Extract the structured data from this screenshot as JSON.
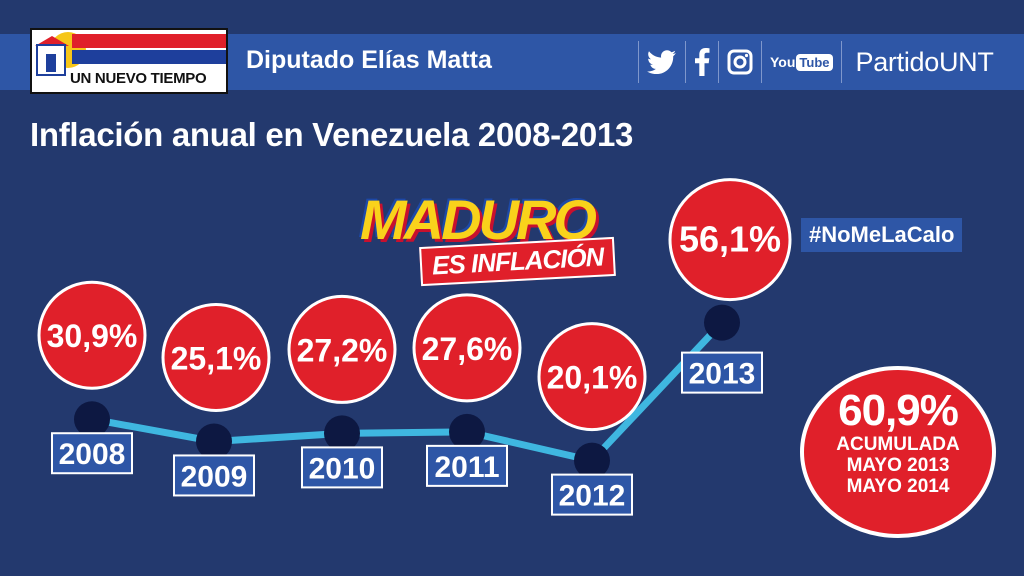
{
  "header": {
    "logo_text": "UN NUEVO TIEMPO",
    "deputy": "Diputado Elías Matta",
    "social_icons": [
      "twitter-icon",
      "facebook-icon",
      "instagram-icon",
      "youtube-icon"
    ],
    "youtube_you": "You",
    "youtube_tube": "Tube",
    "handle": "PartidoUNT"
  },
  "slogan": {
    "main": "MADURO",
    "sub": "ES INFLACIÓN"
  },
  "hashtag": "#NoMeLaCalo",
  "summary": {
    "value": "60,9%",
    "line1": "ACUMULADA",
    "line2": "MAYO 2013",
    "line3": "MAYO 2014"
  },
  "colors": {
    "background": "#23396e",
    "band": "#2e56a6",
    "bubble": "#e0202a",
    "line": "#3fb7e0",
    "dot": "#0d1842"
  },
  "chart_data": {
    "type": "line",
    "title": "Inflación anual en Venezuela 2008-2013",
    "categories": [
      "2008",
      "2009",
      "2010",
      "2011",
      "2012",
      "2013"
    ],
    "values": [
      30.9,
      25.1,
      27.2,
      27.6,
      20.1,
      56.1
    ],
    "value_labels": [
      "30,9%",
      "25,1%",
      "27,2%",
      "27,6%",
      "20,1%",
      "56,1%"
    ],
    "xlabel": "",
    "ylabel": "",
    "grid": false,
    "legend": "none"
  }
}
